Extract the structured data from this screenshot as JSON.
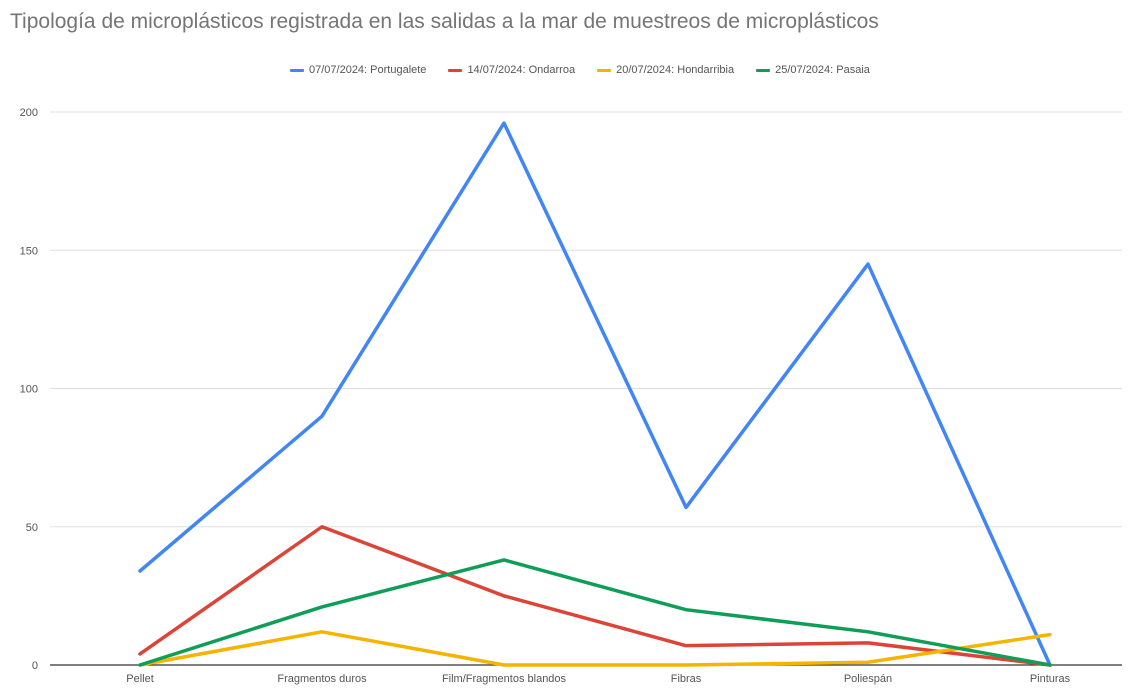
{
  "chart_data": {
    "type": "line",
    "title": "Tipología de microplásticos registrada en las salidas a la mar de muestreos de microplásticos",
    "categories": [
      "Pellet",
      "Fragmentos duros",
      "Film/Fragmentos blandos",
      "Fibras",
      "Poliespán",
      "Pinturas"
    ],
    "ylim": [
      0,
      200
    ],
    "yticks": [
      0,
      50,
      100,
      150,
      200
    ],
    "grid": true,
    "legend_position": "top",
    "series": [
      {
        "name": "07/07/2024: Portugalete",
        "color": "#4285F4",
        "values": [
          34,
          90,
          196,
          57,
          145,
          0
        ]
      },
      {
        "name": "14/07/2024: Ondarroa",
        "color": "#DB4437",
        "values": [
          4,
          50,
          25,
          7,
          8,
          0
        ]
      },
      {
        "name": "20/07/2024: Hondarribia",
        "color": "#F4B400",
        "values": [
          0,
          12,
          0,
          0,
          1,
          11
        ]
      },
      {
        "name": "25/07/2024: Pasaia",
        "color": "#0F9D58",
        "values": [
          0,
          21,
          38,
          20,
          12,
          0
        ]
      }
    ]
  }
}
